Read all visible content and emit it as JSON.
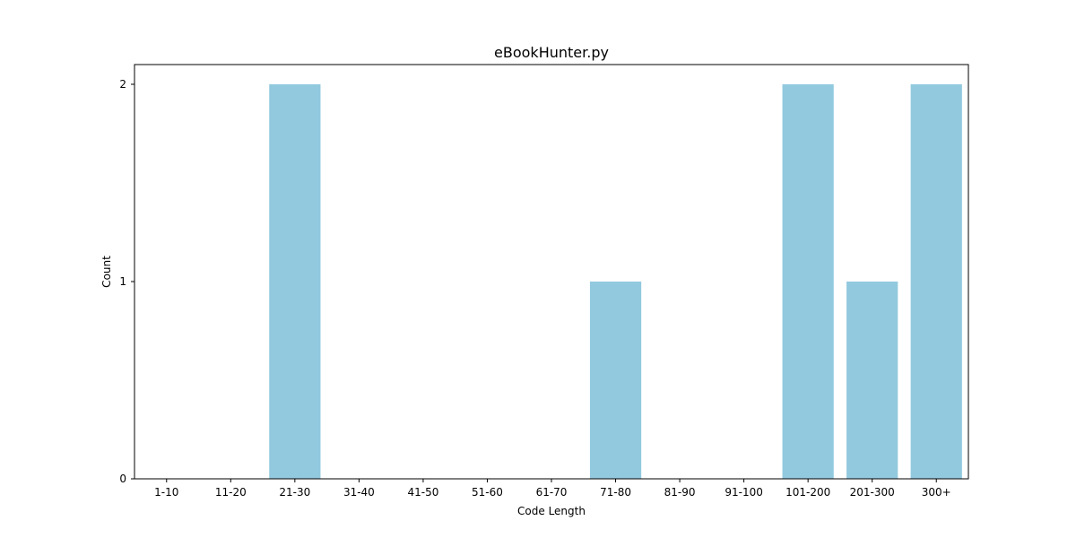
{
  "chart_data": {
    "type": "bar",
    "title": "eBookHunter.py",
    "xlabel": "Code Length",
    "ylabel": "Count",
    "categories": [
      "1-10",
      "11-20",
      "21-30",
      "31-40",
      "41-50",
      "51-60",
      "61-70",
      "71-80",
      "81-90",
      "91-100",
      "101-200",
      "201-300",
      "300+"
    ],
    "values": [
      0,
      0,
      2,
      0,
      0,
      0,
      0,
      1,
      0,
      0,
      2,
      1,
      2
    ],
    "ylim": [
      0,
      2.1
    ],
    "yticks": [
      0,
      1,
      2
    ],
    "grid": false,
    "bar_color": "#92c9de"
  }
}
